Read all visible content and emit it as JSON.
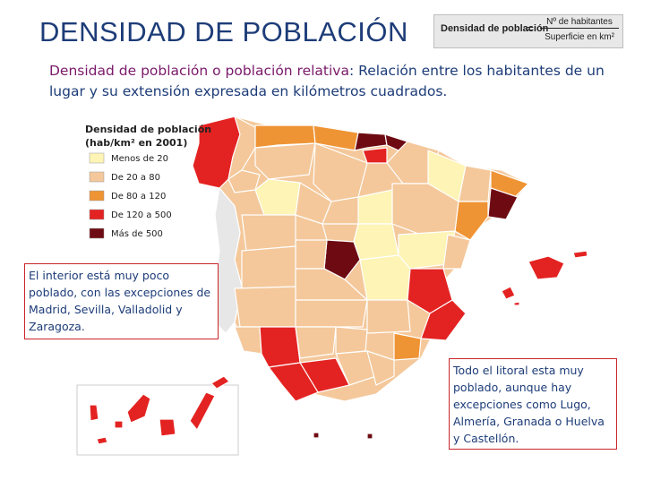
{
  "title": "DENSIDAD DE POBLACIÓN",
  "formula": {
    "lhs": "Densidad de población",
    "equals": "=",
    "numerator": "Nº de habitantes",
    "denominator": "Superficie en km²"
  },
  "intro": {
    "term": "Densidad de población o población relativa",
    "rest": ": Relación entre los habitantes de un lugar y su extensión expresada en kilómetros cuadrados."
  },
  "legend": {
    "title_line1": "Densidad de población",
    "title_line2": "(hab/km² en 2001)",
    "items": [
      {
        "label": "Menos de 20",
        "color": "#fdf4b6"
      },
      {
        "label": "De 20 a 80",
        "color": "#f4c89b"
      },
      {
        "label": "De 80 a 120",
        "color": "#ef9434"
      },
      {
        "label": "De 120 a 500",
        "color": "#e32322"
      },
      {
        "label": "Más de 500",
        "color": "#6e0b12"
      }
    ]
  },
  "notes": {
    "left": "El interior está muy poco poblado, con las excepciones de Madrid, Sevilla, Valladolid y Zaragoza.",
    "right": "Todo el litoral esta muy poblado, aunque hay excepciones como Lugo, Almería, Granada o Huelva y Castellón."
  },
  "colors": {
    "title": "#1d3c78",
    "note_border": "#c8252a",
    "province_border": "#ffffff"
  }
}
